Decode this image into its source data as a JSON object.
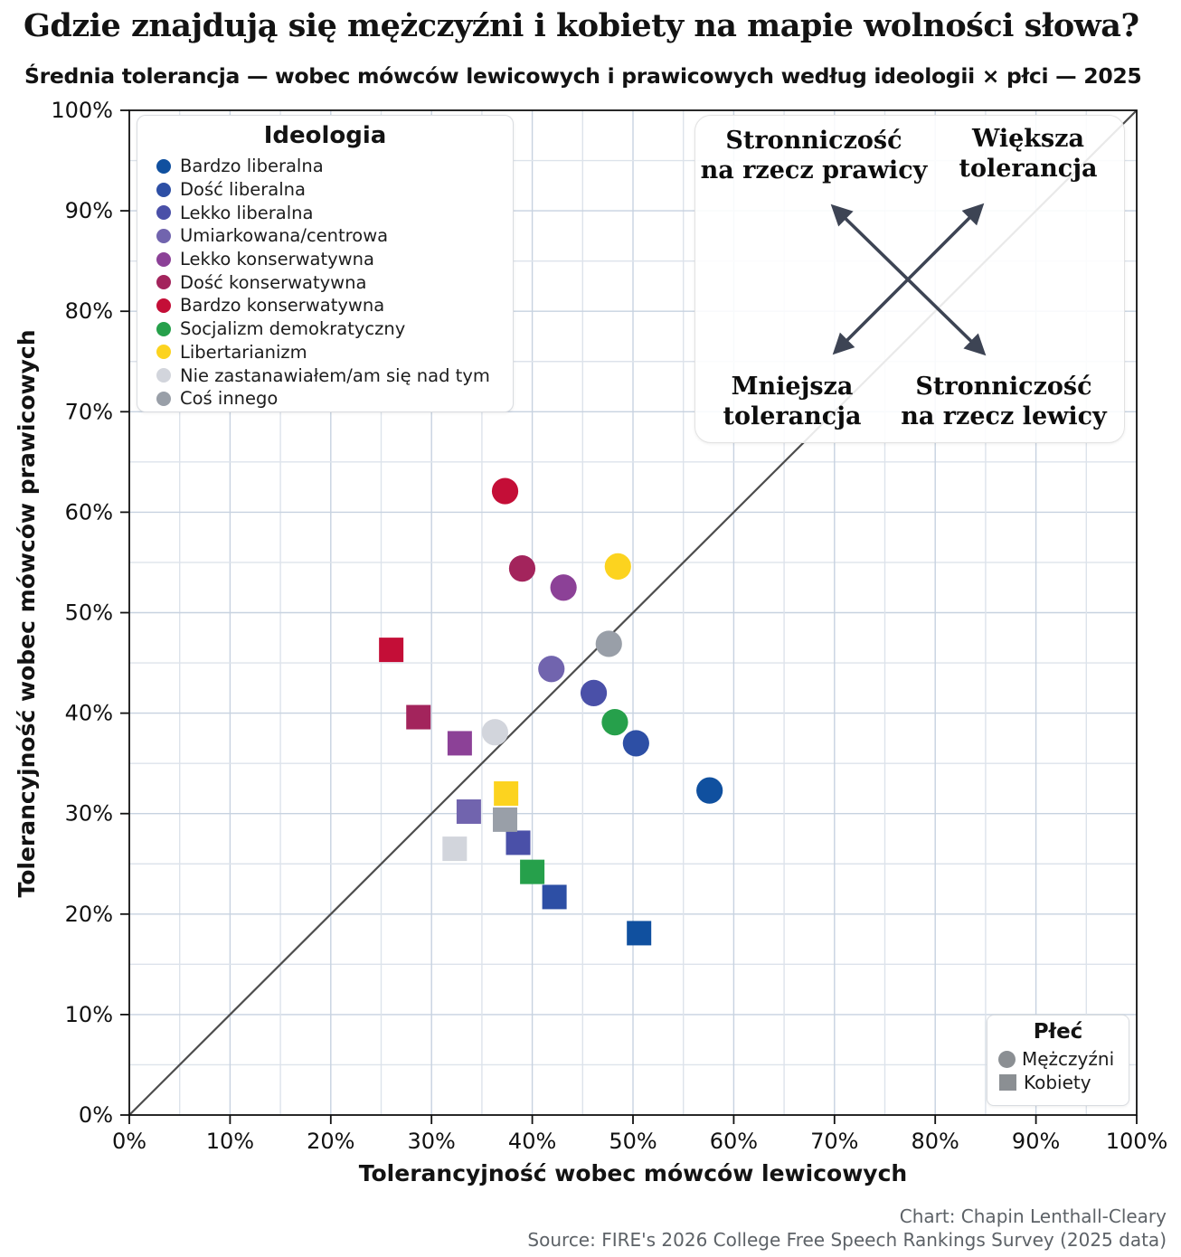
{
  "title": "Gdzie znajdują się mężczyźni i kobiety na mapie wolności słowa?",
  "subtitle": "Średnia tolerancja — wobec mówców lewicowych i prawicowych według ideologii × płci — 2025",
  "legend_ideology": {
    "title": "Ideologia",
    "items": [
      {
        "label": "Bardzo liberalna",
        "color": "#10509f"
      },
      {
        "label": "Dość liberalna",
        "color": "#2d4fa5"
      },
      {
        "label": "Lekko liberalna",
        "color": "#4a50a8"
      },
      {
        "label": "Umiarkowana/centrowa",
        "color": "#7164ae"
      },
      {
        "label": "Lekko konserwatywna",
        "color": "#8c4197"
      },
      {
        "label": "Dość konserwatywna",
        "color": "#a3245c"
      },
      {
        "label": "Bardzo konserwatywna",
        "color": "#c40e37"
      },
      {
        "label": "Socjalizm demokratyczny",
        "color": "#26a04b"
      },
      {
        "label": "Libertarianizm",
        "color": "#fcd31f"
      },
      {
        "label": "Nie zastanawiałem/am się nad tym",
        "color": "#d2d5dc"
      },
      {
        "label": "Coś innego",
        "color": "#999fa8"
      }
    ]
  },
  "legend_gender": {
    "title": "Płeć",
    "marker_color": "#8b8f93",
    "items": [
      {
        "label": "Mężczyźni",
        "marker": "circle"
      },
      {
        "label": "Kobiety",
        "marker": "square"
      }
    ]
  },
  "annotation": {
    "arrow_color": "#3d4454",
    "top_left": "Stronniczość\nna rzecz prawicy",
    "top_right": "Większa\ntolerancja",
    "bottom_left": "Mniejsza\ntolerancja",
    "bottom_right": "Stronniczość\nna rzecz lewicy"
  },
  "credits": {
    "line1": "Chart: Chapin Lenthall-Cleary",
    "line2": "Source: FIRE's 2026 College Free Speech Rankings Survey (2025 data)"
  },
  "chart_data": {
    "type": "scatter",
    "title": "Gdzie znajdują się mężczyźni i kobiety na mapie wolności słowa?",
    "xlabel": "Tolerancyjność wobec mówców lewicowych",
    "ylabel": "Tolerancyjność wobec mówców prawicowych",
    "xlim": [
      0,
      100
    ],
    "ylim": [
      0,
      100
    ],
    "tick_step": 10,
    "grid_step": 5,
    "grid": true,
    "tick_labels": [
      "0%",
      "10%",
      "20%",
      "30%",
      "40%",
      "50%",
      "60%",
      "70%",
      "80%",
      "90%",
      "100%"
    ],
    "diagonal_reference_line": true,
    "legend_position": "upper left",
    "series": [
      {
        "name": "Mężczyźni",
        "marker": "circle",
        "points": [
          {
            "ideology": "Bardzo liberalna",
            "x": 57.6,
            "y": 32.3
          },
          {
            "ideology": "Dość liberalna",
            "x": 50.3,
            "y": 37.0
          },
          {
            "ideology": "Lekko liberalna",
            "x": 46.1,
            "y": 42.0
          },
          {
            "ideology": "Umiarkowana/centrowa",
            "x": 41.9,
            "y": 44.4
          },
          {
            "ideology": "Lekko konserwatywna",
            "x": 43.1,
            "y": 52.5
          },
          {
            "ideology": "Dość konserwatywna",
            "x": 39.0,
            "y": 54.4
          },
          {
            "ideology": "Bardzo konserwatywna",
            "x": 37.3,
            "y": 62.1
          },
          {
            "ideology": "Socjalizm demokratyczny",
            "x": 48.2,
            "y": 39.1
          },
          {
            "ideology": "Libertarianizm",
            "x": 48.5,
            "y": 54.6
          },
          {
            "ideology": "Nie zastanawiałem/am się nad tym",
            "x": 36.3,
            "y": 38.1
          },
          {
            "ideology": "Coś innego",
            "x": 47.6,
            "y": 46.9
          }
        ]
      },
      {
        "name": "Kobiety",
        "marker": "square",
        "points": [
          {
            "ideology": "Bardzo liberalna",
            "x": 50.6,
            "y": 18.1
          },
          {
            "ideology": "Dość liberalna",
            "x": 42.2,
            "y": 21.7
          },
          {
            "ideology": "Lekko liberalna",
            "x": 38.6,
            "y": 27.1
          },
          {
            "ideology": "Umiarkowana/centrowa",
            "x": 33.7,
            "y": 30.2
          },
          {
            "ideology": "Lekko konserwatywna",
            "x": 32.8,
            "y": 37.0
          },
          {
            "ideology": "Dość konserwatywna",
            "x": 28.7,
            "y": 39.6
          },
          {
            "ideology": "Bardzo konserwatywna",
            "x": 26.0,
            "y": 46.3
          },
          {
            "ideology": "Socjalizm demokratyczny",
            "x": 40.0,
            "y": 24.2
          },
          {
            "ideology": "Libertarianizm",
            "x": 37.4,
            "y": 32.0
          },
          {
            "ideology": "Nie zastanawiałem/am się nad tym",
            "x": 32.3,
            "y": 26.5
          },
          {
            "ideology": "Coś innego",
            "x": 37.3,
            "y": 29.4
          }
        ]
      }
    ]
  }
}
